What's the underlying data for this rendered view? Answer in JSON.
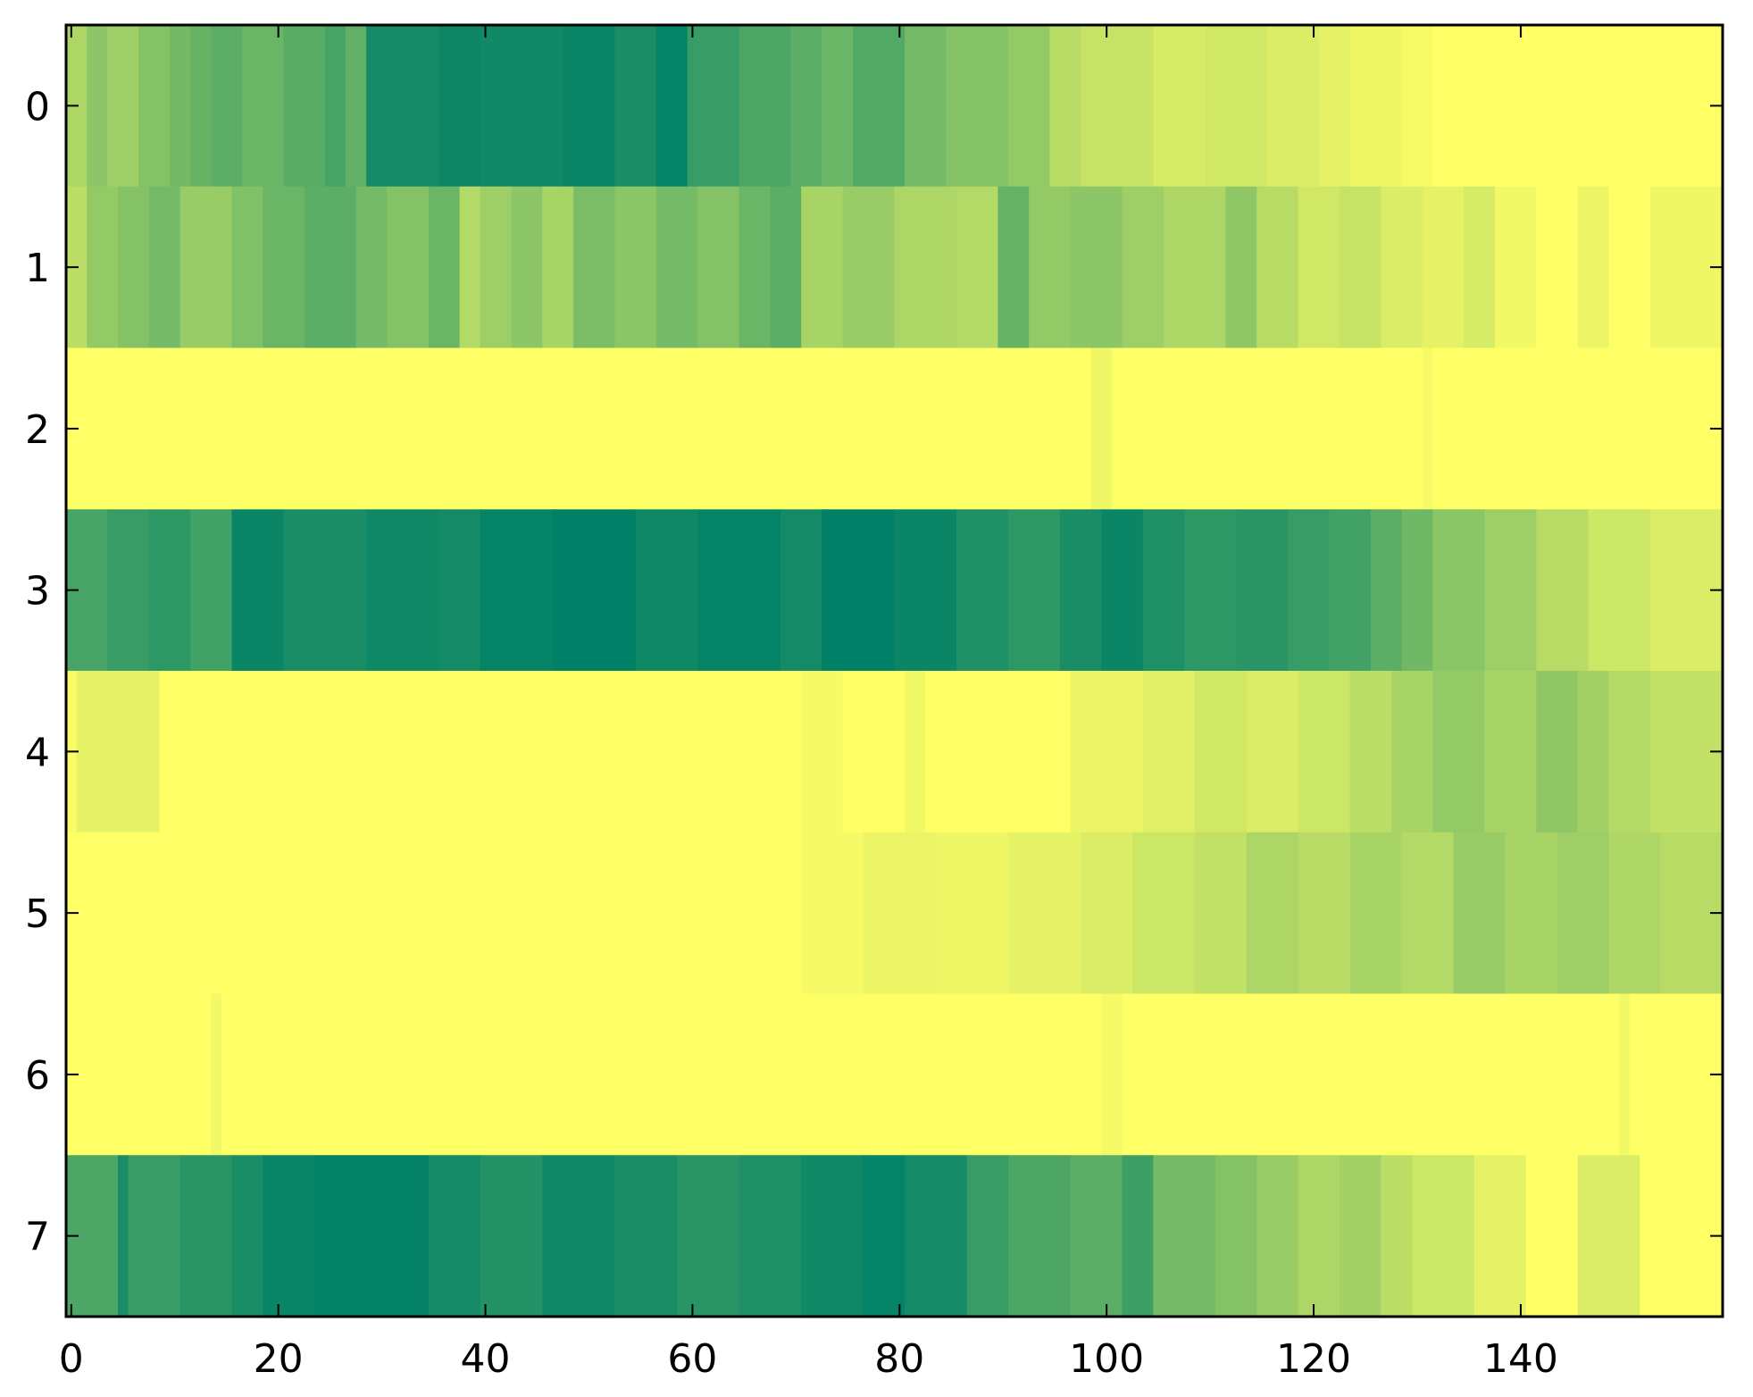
{
  "chart_data": {
    "type": "heatmap",
    "title": "",
    "xlabel": "",
    "ylabel": "",
    "colormap": "summer",
    "colormap_stops": [
      "#008066",
      "#ffff66"
    ],
    "value_range": [
      0,
      1
    ],
    "n_columns": 160,
    "rows": [
      0,
      1,
      2,
      3,
      4,
      5,
      6,
      7
    ],
    "xlim": [
      -0.5,
      159.5
    ],
    "ylim": [
      7.5,
      -0.5
    ],
    "x_ticks": [
      0,
      20,
      40,
      60,
      80,
      100,
      120,
      140
    ],
    "y_ticks": [
      0,
      1,
      2,
      3,
      4,
      5,
      6,
      7
    ],
    "grid": false,
    "legend": "none",
    "row_segments": [
      [
        [
          0,
          1,
          0.68
        ],
        [
          2,
          3,
          0.55
        ],
        [
          4,
          6,
          0.62
        ],
        [
          7,
          9,
          0.52
        ],
        [
          10,
          11,
          0.45
        ],
        [
          12,
          13,
          0.4
        ],
        [
          14,
          16,
          0.36
        ],
        [
          17,
          20,
          0.42
        ],
        [
          21,
          24,
          0.35
        ],
        [
          25,
          26,
          0.28
        ],
        [
          27,
          28,
          0.38
        ],
        [
          29,
          35,
          0.08
        ],
        [
          36,
          39,
          0.05
        ],
        [
          40,
          47,
          0.07
        ],
        [
          48,
          52,
          0.04
        ],
        [
          53,
          56,
          0.1
        ],
        [
          57,
          59,
          0.02
        ],
        [
          60,
          64,
          0.22
        ],
        [
          65,
          69,
          0.3
        ],
        [
          70,
          72,
          0.36
        ],
        [
          73,
          75,
          0.42
        ],
        [
          76,
          80,
          0.32
        ],
        [
          81,
          84,
          0.46
        ],
        [
          85,
          90,
          0.52
        ],
        [
          91,
          94,
          0.58
        ],
        [
          95,
          97,
          0.72
        ],
        [
          98,
          104,
          0.78
        ],
        [
          105,
          109,
          0.84
        ],
        [
          110,
          115,
          0.82
        ],
        [
          116,
          120,
          0.86
        ],
        [
          121,
          123,
          0.9
        ],
        [
          124,
          128,
          0.94
        ],
        [
          129,
          131,
          0.97
        ],
        [
          132,
          159,
          1.0
        ]
      ],
      [
        [
          0,
          1,
          0.74
        ],
        [
          2,
          4,
          0.58
        ],
        [
          5,
          7,
          0.52
        ],
        [
          8,
          10,
          0.46
        ],
        [
          11,
          15,
          0.6
        ],
        [
          16,
          18,
          0.5
        ],
        [
          19,
          22,
          0.42
        ],
        [
          23,
          27,
          0.36
        ],
        [
          28,
          30,
          0.46
        ],
        [
          31,
          34,
          0.52
        ],
        [
          35,
          37,
          0.42
        ],
        [
          38,
          39,
          0.7
        ],
        [
          40,
          42,
          0.62
        ],
        [
          43,
          45,
          0.55
        ],
        [
          46,
          48,
          0.66
        ],
        [
          49,
          52,
          0.48
        ],
        [
          53,
          56,
          0.54
        ],
        [
          57,
          60,
          0.46
        ],
        [
          61,
          64,
          0.52
        ],
        [
          65,
          67,
          0.42
        ],
        [
          68,
          70,
          0.36
        ],
        [
          71,
          74,
          0.66
        ],
        [
          75,
          79,
          0.6
        ],
        [
          80,
          85,
          0.68
        ],
        [
          86,
          89,
          0.7
        ],
        [
          90,
          92,
          0.4
        ],
        [
          93,
          96,
          0.58
        ],
        [
          97,
          101,
          0.55
        ],
        [
          102,
          105,
          0.62
        ],
        [
          106,
          111,
          0.68
        ],
        [
          112,
          114,
          0.56
        ],
        [
          115,
          118,
          0.72
        ],
        [
          119,
          122,
          0.82
        ],
        [
          123,
          126,
          0.78
        ],
        [
          127,
          130,
          0.86
        ],
        [
          131,
          134,
          0.9
        ],
        [
          135,
          137,
          0.84
        ],
        [
          138,
          141,
          0.95
        ],
        [
          142,
          145,
          1.0
        ],
        [
          146,
          148,
          0.92
        ],
        [
          149,
          152,
          1.0
        ],
        [
          153,
          159,
          0.94
        ]
      ],
      [
        [
          0,
          98,
          1.0
        ],
        [
          99,
          100,
          0.94
        ],
        [
          101,
          130,
          1.0
        ],
        [
          131,
          131,
          0.96
        ],
        [
          132,
          159,
          1.0
        ]
      ],
      [
        [
          0,
          3,
          0.28
        ],
        [
          4,
          7,
          0.22
        ],
        [
          8,
          11,
          0.18
        ],
        [
          12,
          15,
          0.26
        ],
        [
          16,
          20,
          0.04
        ],
        [
          21,
          28,
          0.1
        ],
        [
          29,
          35,
          0.06
        ],
        [
          36,
          39,
          0.08
        ],
        [
          40,
          46,
          0.02
        ],
        [
          47,
          54,
          0.0
        ],
        [
          55,
          60,
          0.06
        ],
        [
          61,
          68,
          0.02
        ],
        [
          69,
          72,
          0.08
        ],
        [
          73,
          79,
          0.0
        ],
        [
          80,
          85,
          0.04
        ],
        [
          86,
          90,
          0.12
        ],
        [
          91,
          95,
          0.18
        ],
        [
          96,
          99,
          0.1
        ],
        [
          100,
          103,
          0.04
        ],
        [
          104,
          107,
          0.12
        ],
        [
          108,
          112,
          0.18
        ],
        [
          113,
          117,
          0.16
        ],
        [
          118,
          121,
          0.22
        ],
        [
          122,
          125,
          0.26
        ],
        [
          126,
          128,
          0.36
        ],
        [
          129,
          131,
          0.44
        ],
        [
          132,
          136,
          0.54
        ],
        [
          137,
          141,
          0.62
        ],
        [
          142,
          146,
          0.72
        ],
        [
          147,
          152,
          0.8
        ],
        [
          153,
          159,
          0.86
        ]
      ],
      [
        [
          0,
          0,
          0.98
        ],
        [
          1,
          8,
          0.9
        ],
        [
          9,
          70,
          1.0
        ],
        [
          71,
          74,
          0.96
        ],
        [
          75,
          80,
          1.0
        ],
        [
          81,
          82,
          0.95
        ],
        [
          83,
          96,
          1.0
        ],
        [
          97,
          103,
          0.92
        ],
        [
          104,
          108,
          0.88
        ],
        [
          109,
          113,
          0.82
        ],
        [
          114,
          118,
          0.86
        ],
        [
          119,
          123,
          0.8
        ],
        [
          124,
          127,
          0.74
        ],
        [
          128,
          131,
          0.66
        ],
        [
          132,
          136,
          0.58
        ],
        [
          137,
          141,
          0.66
        ],
        [
          142,
          145,
          0.56
        ],
        [
          146,
          148,
          0.64
        ],
        [
          149,
          152,
          0.7
        ],
        [
          153,
          159,
          0.76
        ]
      ],
      [
        [
          0,
          70,
          1.0
        ],
        [
          71,
          76,
          0.96
        ],
        [
          77,
          83,
          0.92
        ],
        [
          84,
          90,
          0.94
        ],
        [
          91,
          97,
          0.9
        ],
        [
          98,
          102,
          0.86
        ],
        [
          103,
          108,
          0.8
        ],
        [
          109,
          113,
          0.76
        ],
        [
          114,
          118,
          0.68
        ],
        [
          119,
          123,
          0.72
        ],
        [
          124,
          128,
          0.66
        ],
        [
          129,
          133,
          0.7
        ],
        [
          134,
          138,
          0.6
        ],
        [
          139,
          143,
          0.66
        ],
        [
          144,
          148,
          0.62
        ],
        [
          149,
          153,
          0.68
        ],
        [
          154,
          159,
          0.72
        ]
      ],
      [
        [
          0,
          13,
          1.0
        ],
        [
          14,
          14,
          0.95
        ],
        [
          15,
          99,
          1.0
        ],
        [
          100,
          101,
          0.96
        ],
        [
          102,
          149,
          1.0
        ],
        [
          150,
          150,
          0.95
        ],
        [
          151,
          159,
          1.0
        ]
      ],
      [
        [
          0,
          4,
          0.3
        ],
        [
          5,
          5,
          0.1
        ],
        [
          6,
          10,
          0.22
        ],
        [
          11,
          15,
          0.16
        ],
        [
          16,
          18,
          0.1
        ],
        [
          19,
          23,
          0.04
        ],
        [
          24,
          34,
          0.01
        ],
        [
          35,
          39,
          0.08
        ],
        [
          40,
          45,
          0.14
        ],
        [
          46,
          52,
          0.06
        ],
        [
          53,
          58,
          0.1
        ],
        [
          59,
          64,
          0.16
        ],
        [
          65,
          70,
          0.12
        ],
        [
          71,
          76,
          0.06
        ],
        [
          77,
          80,
          0.02
        ],
        [
          81,
          86,
          0.08
        ],
        [
          87,
          90,
          0.22
        ],
        [
          91,
          96,
          0.3
        ],
        [
          97,
          101,
          0.36
        ],
        [
          102,
          104,
          0.24
        ],
        [
          105,
          110,
          0.46
        ],
        [
          111,
          114,
          0.52
        ],
        [
          115,
          118,
          0.6
        ],
        [
          119,
          122,
          0.68
        ],
        [
          123,
          126,
          0.64
        ],
        [
          127,
          129,
          0.74
        ],
        [
          130,
          135,
          0.8
        ],
        [
          136,
          140,
          0.9
        ],
        [
          141,
          145,
          1.0
        ],
        [
          146,
          151,
          0.86
        ],
        [
          152,
          159,
          1.0
        ]
      ]
    ]
  }
}
